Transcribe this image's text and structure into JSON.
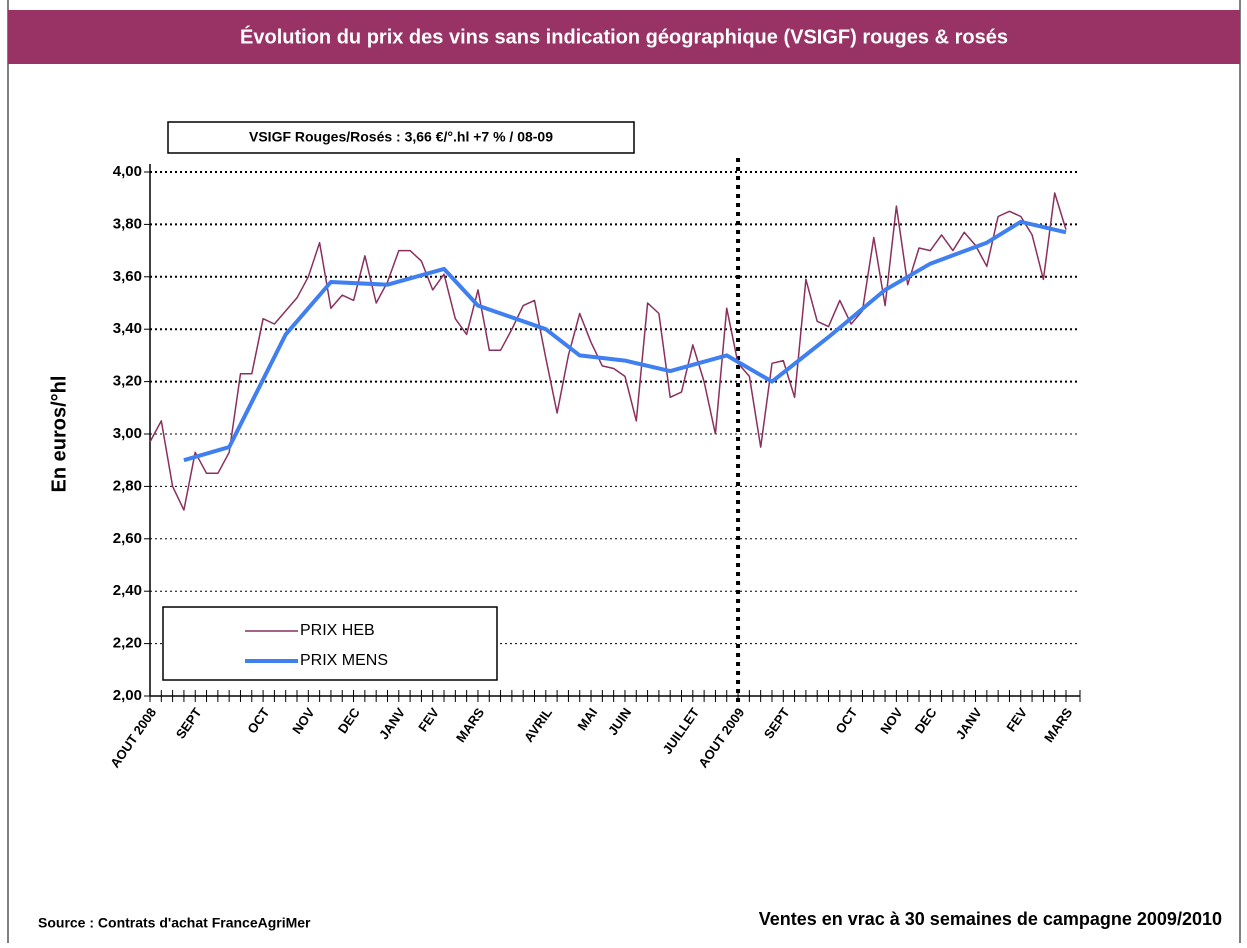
{
  "chart_data": {
    "type": "line",
    "title": "Évolution du prix des vins sans indication géographique (VSIGF) rouges & rosés",
    "annotation": "VSIGF Rouges/Rosés : 3,66 €/°.hl +7 % / 08-09",
    "y_label": "En euros/°hl",
    "source": "Source : Contrats d'achat FranceAgriMer",
    "footnote": "Ventes en vrac à 30 semaines de campagne 2009/2010",
    "categories": [
      "AOUT 2008",
      null,
      null,
      null,
      "SEPT",
      null,
      null,
      null,
      null,
      null,
      "OCT",
      null,
      null,
      null,
      "NOV",
      null,
      null,
      null,
      "DEC",
      null,
      null,
      null,
      "JANV",
      null,
      null,
      "FEV",
      null,
      null,
      null,
      "MARS",
      null,
      null,
      null,
      null,
      null,
      "AVRIL",
      null,
      null,
      null,
      "MAI",
      null,
      null,
      "JUIN",
      null,
      null,
      null,
      null,
      null,
      "JUILLET",
      null,
      null,
      null,
      "AOUT 2009",
      null,
      null,
      null,
      "SEPT",
      null,
      null,
      null,
      null,
      null,
      "OCT",
      null,
      null,
      null,
      "NOV",
      null,
      null,
      "DEC",
      null,
      null,
      null,
      "JANV",
      null,
      null,
      null,
      "FEV",
      null,
      null,
      null,
      "MARS"
    ],
    "series": [
      {
        "name": "PRIX HEB",
        "color": "#8b2f5e",
        "width": 1.5,
        "values": [
          2.97,
          3.05,
          2.8,
          2.71,
          2.93,
          2.85,
          2.85,
          2.93,
          3.23,
          3.23,
          3.44,
          3.42,
          3.47,
          3.52,
          3.6,
          3.73,
          3.48,
          3.53,
          3.51,
          3.68,
          3.5,
          3.58,
          3.7,
          3.7,
          3.66,
          3.55,
          3.61,
          3.44,
          3.38,
          3.55,
          3.32,
          3.32,
          3.4,
          3.49,
          3.51,
          3.29,
          3.08,
          3.3,
          3.46,
          3.35,
          3.26,
          3.25,
          3.22,
          3.05,
          3.5,
          3.46,
          3.14,
          3.16,
          3.34,
          3.2,
          3.0,
          3.48,
          3.27,
          3.22,
          2.95,
          3.27,
          3.28,
          3.14,
          3.59,
          3.43,
          3.41,
          3.51,
          3.42,
          3.47,
          3.75,
          3.49,
          3.87,
          3.57,
          3.71,
          3.7,
          3.76,
          3.7,
          3.77,
          3.72,
          3.64,
          3.83,
          3.85,
          3.83,
          3.76,
          3.59,
          3.92,
          3.78
        ]
      },
      {
        "name": "PRIX MENS",
        "color": "#3f7ff0",
        "width": 4,
        "connect_gaps": true,
        "values": [
          null,
          null,
          null,
          2.9,
          null,
          null,
          null,
          2.95,
          null,
          null,
          null,
          null,
          3.38,
          null,
          null,
          null,
          3.58,
          null,
          null,
          null,
          null,
          3.57,
          null,
          null,
          null,
          null,
          3.63,
          null,
          null,
          3.49,
          null,
          null,
          null,
          null,
          null,
          3.4,
          null,
          null,
          3.3,
          null,
          null,
          null,
          3.28,
          null,
          null,
          null,
          3.24,
          null,
          null,
          null,
          null,
          3.3,
          null,
          null,
          null,
          3.2,
          null,
          null,
          null,
          null,
          3.37,
          null,
          null,
          null,
          null,
          3.55,
          null,
          null,
          null,
          3.65,
          null,
          null,
          null,
          null,
          3.73,
          null,
          null,
          3.81,
          null,
          null,
          null,
          3.77
        ]
      }
    ],
    "ylim": [
      2,
      4
    ],
    "yticks": [
      {
        "value": 2,
        "label": "2,00"
      },
      {
        "value": 2.2,
        "label": "2,20"
      },
      {
        "value": 2.4,
        "label": "2,40"
      },
      {
        "value": 2.6,
        "label": "2,60"
      },
      {
        "value": 2.8,
        "label": "2,80"
      },
      {
        "value": 3,
        "label": "3,00"
      },
      {
        "value": 3.2,
        "label": "3,20"
      },
      {
        "value": 3.4,
        "label": "3,40"
      },
      {
        "value": 3.6,
        "label": "3,60"
      },
      {
        "value": 3.8,
        "label": "3,80"
      },
      {
        "value": 4,
        "label": "4,00"
      }
    ],
    "grid": true,
    "divider_category": "AOUT 2009"
  }
}
